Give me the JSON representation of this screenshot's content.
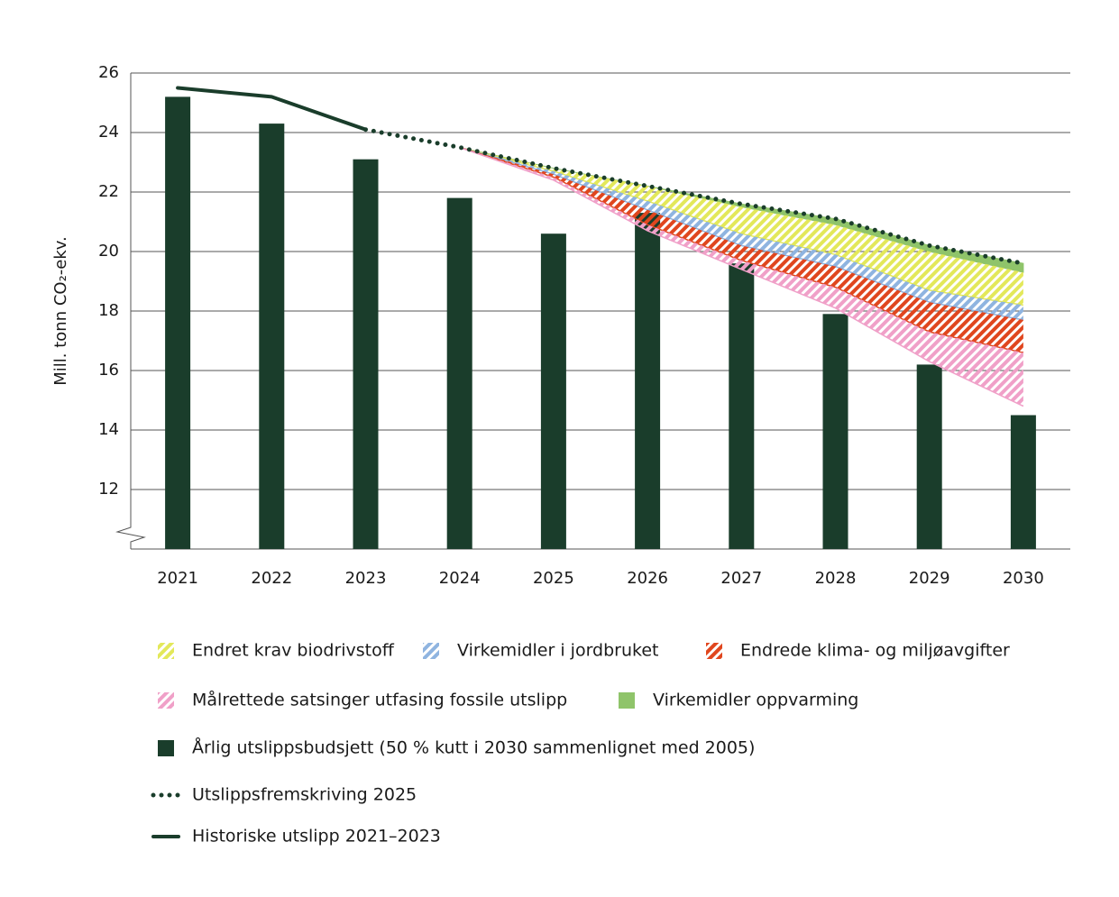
{
  "chart_data": {
    "type": "combo",
    "y_label": "Mill. tonn CO₂-ekv.",
    "categories": [
      "2021",
      "2022",
      "2023",
      "2024",
      "2025",
      "2026",
      "2027",
      "2028",
      "2029",
      "2030"
    ],
    "ylim": [
      10,
      26
    ],
    "yticks": [
      12,
      14,
      16,
      18,
      20,
      22,
      24,
      26
    ],
    "grid": true,
    "series": [
      {
        "name": "Årlig utslippsbudsjett (50 % kutt i 2030 sammenlignet med 2005)",
        "style": "bar",
        "color": "#1a3d2b",
        "values": [
          25.2,
          24.3,
          23.1,
          21.8,
          20.6,
          21.3,
          19.6,
          17.9,
          16.2,
          14.5
        ]
      },
      {
        "name": "Historiske utslipp 2021–2023",
        "style": "line",
        "color": "#1a3d2b",
        "values": [
          25.5,
          25.2,
          24.1,
          null,
          null,
          null,
          null,
          null,
          null,
          null
        ]
      },
      {
        "name": "Utslippsfremskriving 2025",
        "style": "dotted",
        "color": "#1a3d2b",
        "values": [
          null,
          null,
          24.1,
          23.5,
          22.8,
          22.2,
          21.6,
          21.1,
          20.2,
          19.6
        ]
      },
      {
        "name": "Virkemidler oppvarming",
        "style": "reduction",
        "hatched": false,
        "color": "#8fc46a",
        "values": [
          null,
          null,
          null,
          0,
          0,
          0,
          0.1,
          0.2,
          0.2,
          0.3
        ]
      },
      {
        "name": "Endret krav biodrivstoff",
        "style": "reduction",
        "hatched": true,
        "color": "#e3e85a",
        "values": [
          null,
          null,
          null,
          0,
          0.1,
          0.5,
          0.9,
          1.0,
          1.3,
          1.1
        ]
      },
      {
        "name": "Virkemidler i jordbruket",
        "style": "reduction",
        "hatched": true,
        "color": "#8fb4e0",
        "values": [
          null,
          null,
          null,
          0,
          0.1,
          0.3,
          0.4,
          0.4,
          0.4,
          0.5
        ]
      },
      {
        "name": "Endrede klima- og miljøavgifter",
        "style": "reduction",
        "hatched": true,
        "color": "#e0461e",
        "values": [
          null,
          null,
          null,
          0,
          0.1,
          0.5,
          0.5,
          0.7,
          1.0,
          1.1
        ]
      },
      {
        "name": "Målrettede satsinger utfasing fossile utslipp",
        "style": "reduction",
        "hatched": true,
        "color": "#f0a0c8",
        "values": [
          null,
          null,
          null,
          0,
          0.1,
          0.2,
          0.3,
          0.7,
          1.0,
          1.8
        ]
      }
    ]
  }
}
